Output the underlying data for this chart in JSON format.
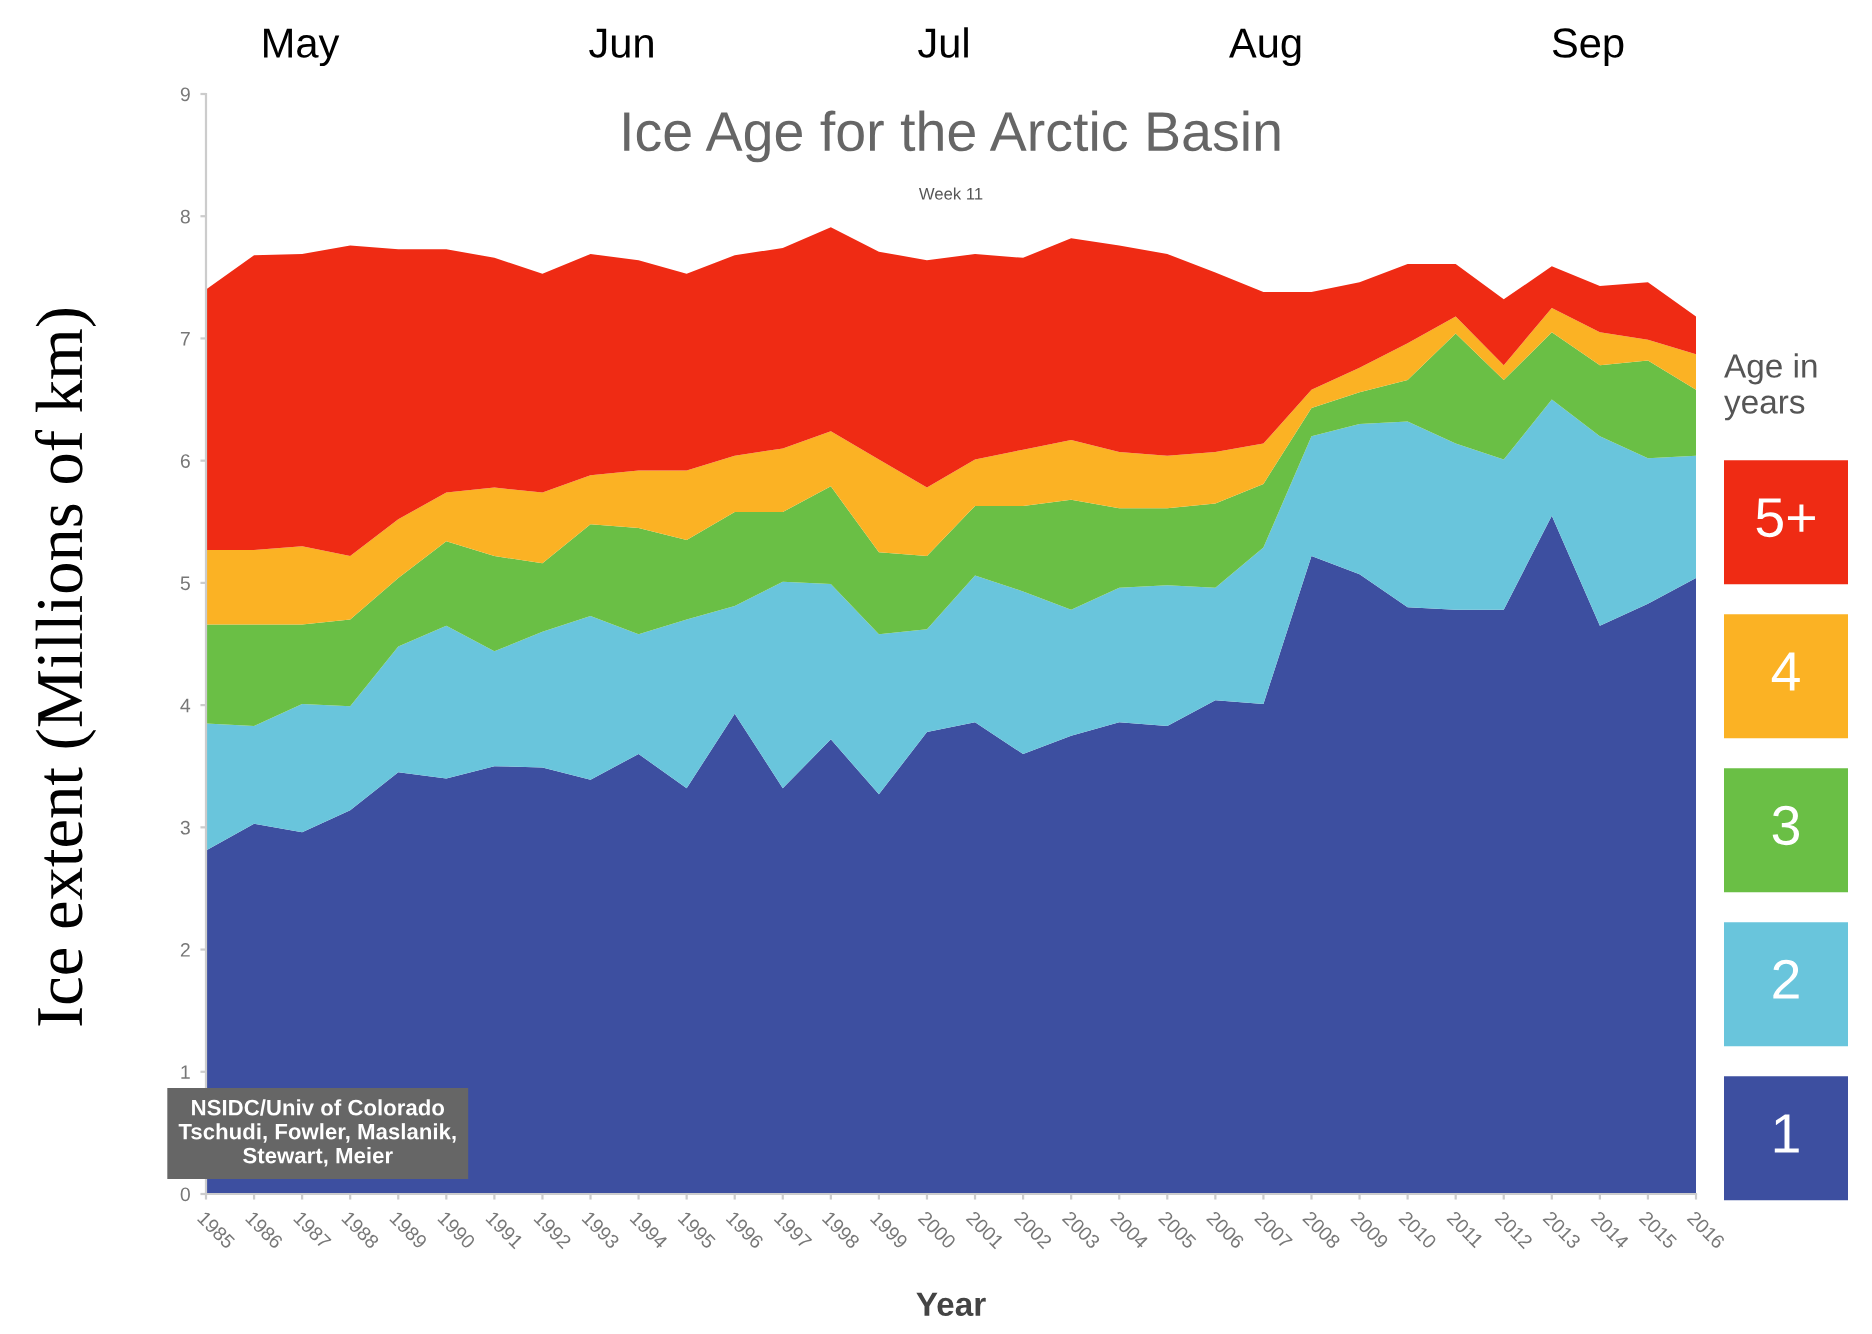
{
  "chart_data": {
    "type": "area",
    "stacked": true,
    "title": "Ice Age for the Arctic Basin",
    "subtitle": "Week 11",
    "xlabel": "Year",
    "ylabel": "Ice extent (Millions of km)",
    "legend_title": "Age in years",
    "legend": "right",
    "annotations": [
      "May",
      "Jun",
      "Jul",
      "Aug",
      "Sep",
      "NSIDC/Univ of Colorado\nTschudi, Fowler, Maslanik,\nStewart, Meier"
    ],
    "x": [
      1985,
      1986,
      1987,
      1988,
      1989,
      1990,
      1991,
      1992,
      1993,
      1994,
      1995,
      1996,
      1997,
      1998,
      1999,
      2000,
      2001,
      2002,
      2003,
      2004,
      2005,
      2006,
      2007,
      2008,
      2009,
      2010,
      2011,
      2012,
      2013,
      2014,
      2015,
      2016
    ],
    "xlim": [
      1985,
      2016
    ],
    "xticks": [
      1985,
      1986,
      1987,
      1988,
      1989,
      1990,
      1991,
      1992,
      1993,
      1994,
      1995,
      1996,
      1997,
      1998,
      1999,
      2000,
      2001,
      2002,
      2003,
      2004,
      2005,
      2006,
      2007,
      2008,
      2009,
      2010,
      2011,
      2012,
      2013,
      2014,
      2015,
      2016
    ],
    "ylim": [
      0,
      9
    ],
    "yticks": [
      0,
      1,
      2,
      3,
      4,
      5,
      6,
      7,
      8,
      9
    ],
    "grid": false,
    "series": [
      {
        "name": "1",
        "color": "#3d4fa0",
        "values": [
          2.81,
          3.03,
          2.96,
          3.14,
          3.45,
          3.4,
          3.5,
          3.49,
          3.39,
          3.6,
          3.32,
          3.93,
          3.32,
          3.72,
          3.27,
          3.78,
          3.86,
          3.6,
          3.75,
          3.86,
          3.83,
          4.04,
          4.01,
          5.22,
          5.07,
          4.8,
          4.78,
          4.78,
          5.55,
          4.65,
          4.83,
          5.04
        ]
      },
      {
        "name": "2",
        "color": "#69c5dc",
        "values": [
          1.04,
          0.8,
          1.05,
          0.85,
          1.03,
          1.25,
          0.94,
          1.11,
          1.34,
          0.98,
          1.38,
          0.88,
          1.69,
          1.27,
          1.31,
          0.84,
          1.2,
          1.33,
          1.03,
          1.1,
          1.15,
          0.92,
          1.28,
          0.98,
          1.23,
          1.52,
          1.36,
          1.23,
          0.95,
          1.55,
          1.19,
          1.0
        ]
      },
      {
        "name": "3",
        "color": "#6abf45",
        "values": [
          0.81,
          0.83,
          0.65,
          0.71,
          0.56,
          0.69,
          0.78,
          0.56,
          0.75,
          0.87,
          0.65,
          0.77,
          0.57,
          0.8,
          0.67,
          0.6,
          0.57,
          0.7,
          0.9,
          0.65,
          0.63,
          0.69,
          0.52,
          0.23,
          0.26,
          0.34,
          0.9,
          0.65,
          0.55,
          0.58,
          0.8,
          0.54
        ]
      },
      {
        "name": "4",
        "color": "#fbb224",
        "values": [
          0.61,
          0.61,
          0.64,
          0.52,
          0.48,
          0.4,
          0.56,
          0.58,
          0.4,
          0.47,
          0.57,
          0.46,
          0.52,
          0.45,
          0.76,
          0.56,
          0.38,
          0.46,
          0.49,
          0.46,
          0.43,
          0.42,
          0.33,
          0.15,
          0.2,
          0.3,
          0.14,
          0.12,
          0.2,
          0.27,
          0.17,
          0.29
        ]
      },
      {
        "name": "5+",
        "color": "#ef2b14",
        "values": [
          2.13,
          2.41,
          2.39,
          2.54,
          2.21,
          1.99,
          1.88,
          1.79,
          1.81,
          1.72,
          1.61,
          1.64,
          1.64,
          1.67,
          1.7,
          1.86,
          1.68,
          1.57,
          1.65,
          1.69,
          1.65,
          1.47,
          1.24,
          0.8,
          0.7,
          0.65,
          0.43,
          0.54,
          0.34,
          0.38,
          0.47,
          0.31
        ]
      }
    ]
  }
}
